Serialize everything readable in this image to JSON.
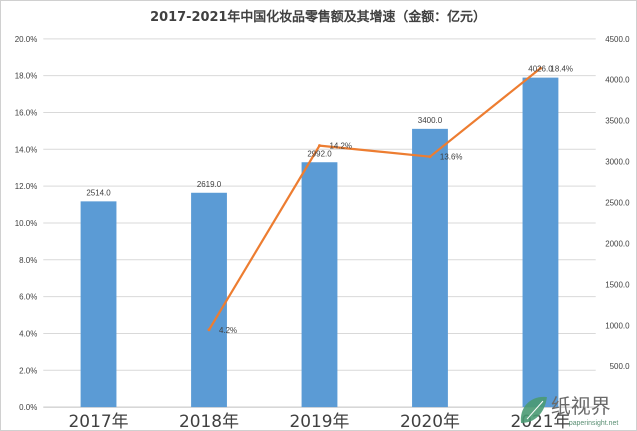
{
  "chart_data": {
    "type": "bar",
    "title": "2017-2021年中国化妆品零售额及其增速（金额：亿元）",
    "categories": [
      "2017年",
      "2018年",
      "2019年",
      "2020年",
      "2021年"
    ],
    "series": [
      {
        "name": "",
        "kind": "bar",
        "axis": "right",
        "values": [
          2514.0,
          2619.0,
          2992.0,
          3400.0,
          4026.0
        ],
        "labels": [
          "2514.0",
          "2619.0",
          "2992.0",
          "3400.0",
          "4026.0"
        ],
        "color": "#5b9bd5"
      },
      {
        "name": "",
        "kind": "line",
        "axis": "left",
        "values": [
          null,
          4.2,
          14.2,
          13.6,
          18.4
        ],
        "labels": [
          "",
          "4.2%",
          "14.2%",
          "13.6%",
          "18.4%"
        ],
        "color": "#ed7d31"
      }
    ],
    "y_left": {
      "min": 0,
      "max": 20,
      "step": 2,
      "ticks": [
        "0.0%",
        "2.0%",
        "4.0%",
        "6.0%",
        "8.0%",
        "10.0%",
        "12.0%",
        "14.0%",
        "16.0%",
        "18.0%",
        "20.0%"
      ]
    },
    "y_right": {
      "min": 0,
      "max": 4500,
      "step": 500,
      "ticks": [
        "0.0",
        "500.0",
        "1000.0",
        "1500.0",
        "2000.0",
        "2500.0",
        "3000.0",
        "3500.0",
        "4000.0",
        "4500.0"
      ]
    },
    "grid": true,
    "legend": "none"
  },
  "watermark": {
    "text": "纸视界",
    "url": "paperinsight.net"
  }
}
